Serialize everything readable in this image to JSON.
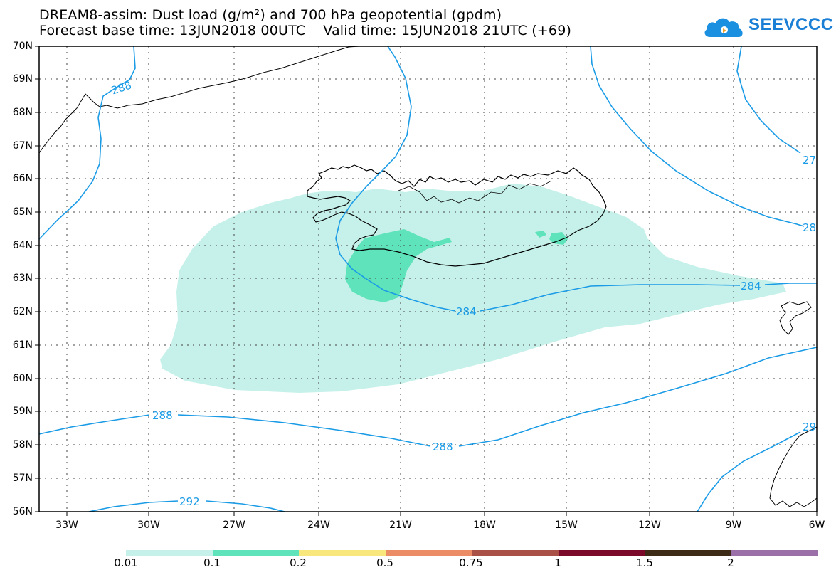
{
  "header": {
    "title_line1": "DREAM8-assim: Dust load (g/m²) and 700 hPa geopotential (gpdm)",
    "title_line2": "Forecast base time: 13JUN2018 00UTC    Valid time: 15JUN2018 21UTC (+69)"
  },
  "logo": {
    "text": "SEEVCCC",
    "icon": "cloud-icon"
  },
  "axes": {
    "lat_labels": [
      "70N",
      "69N",
      "68N",
      "67N",
      "66N",
      "65N",
      "64N",
      "63N",
      "62N",
      "61N",
      "60N",
      "59N",
      "58N",
      "57N",
      "56N"
    ],
    "lon_labels": [
      "33W",
      "30W",
      "27W",
      "24W",
      "21W",
      "18W",
      "15W",
      "12W",
      "9W",
      "6W"
    ]
  },
  "contours": {
    "labels": [
      "288",
      "288",
      "288",
      "284",
      "284",
      "288",
      "292"
    ],
    "edge_labels": [
      "27",
      "28",
      "29"
    ],
    "color": "#1a9be6"
  },
  "colorbar": {
    "labels": [
      "0.01",
      "0.1",
      "0.2",
      "0.5",
      "0.75",
      "1",
      "1.5",
      "2"
    ],
    "colors": [
      "#c6f1ea",
      "#5ee3bb",
      "#f7e77c",
      "#ec8c67",
      "#a95146",
      "#7b0a2a",
      "#3d2a17",
      "#9b6fa7"
    ]
  },
  "fills": {
    "low": "#c6f1ea",
    "mid": "#5ee3bb"
  }
}
